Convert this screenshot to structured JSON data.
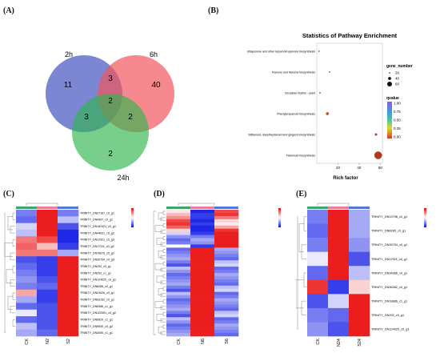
{
  "panels": {
    "A": {
      "label": "(A)",
      "sets": [
        {
          "name": "2h",
          "color": "#4f5fc4"
        },
        {
          "name": "6h",
          "color": "#f2575c"
        },
        {
          "name": "24h",
          "color": "#2fb64f"
        }
      ],
      "counts": {
        "only_2h": "11",
        "only_6h": "40",
        "only_24h": "2",
        "2h_6h": "3",
        "2h_24h": "3",
        "6h_24h": "2",
        "all": "2"
      }
    },
    "B": {
      "label": "(B)",
      "chart_data": {
        "type": "scatter",
        "title": "Statistics of Pathway Enrichment",
        "xlabel": "Rich factor",
        "xlim": [
          0,
          62
        ],
        "xticks": [
          "20",
          "40",
          "60"
        ],
        "categories": [
          "Ubiquinone and other terpenoid-quinone biosynthesis",
          "Flavone and flavonol biosynthesis",
          "Circadian rhythm - plant",
          "Phenylpropanoid biosynthesis",
          "Stilbenoid, diarylheptanoid and gingerol biosynthesis",
          "Flavonoid biosynthesis"
        ],
        "points": [
          {
            "rich_factor": 2,
            "gene_number": 1,
            "color": "#7b5fd0"
          },
          {
            "rich_factor": 12,
            "gene_number": 1,
            "color": "#7b5fd0"
          },
          {
            "rich_factor": 3,
            "gene_number": 1,
            "color": "#7b5fd0"
          },
          {
            "rich_factor": 10,
            "gene_number": 8,
            "color": "#d4502a"
          },
          {
            "rich_factor": 56,
            "gene_number": 5,
            "color": "#d92c2c"
          },
          {
            "rich_factor": 58,
            "gene_number": 60,
            "color": "#b8361e"
          }
        ],
        "size_legend": {
          "title": "gene_number",
          "values": [
            "20",
            "40",
            "60"
          ]
        },
        "color_legend": {
          "title": "qvalue",
          "ticks": [
            "1.00",
            "0.75",
            "0.50",
            "0.25",
            "0.00"
          ]
        }
      }
    },
    "C": {
      "label": "(C)",
      "columns": [
        "CK",
        "N2",
        "S2"
      ],
      "genes": [
        "TRINITY_DN27167_c0_g1",
        "TRINITY_DN4997_c0_g1",
        "TRINITY_DN162421_c0_g1",
        "TRINITY_DN44631_c0_g2",
        "TRINITY_DN12921_c0_g3",
        "TRINITY_DN17311_c0_g2",
        "TRINITY_DN76676_c0_g1",
        "TRINITY_DN30754_c0_g3",
        "TRINITY_DN252_c0_g1",
        "TRINITY_DN252_c1_g1",
        "TRINITY_DN124025_c0_g1",
        "TRINITY_DN8285_c0_g1",
        "TRINITY_DN24026_c0_g1",
        "TRINITY_DN53152_c0_g1",
        "TRINITY_DN5386_c1_g1",
        "TRINITY_DN122551_c0_g2",
        "TRINITY_DN5929_c1_g1",
        "TRINITY_DN9530_c0_g2",
        "TRINITY_DN4055_c1_g1"
      ],
      "values": [
        [
          -0.6,
          1.0,
          -0.6
        ],
        [
          -0.7,
          1.0,
          -0.3
        ],
        [
          -0.2,
          1.0,
          -0.8
        ],
        [
          -0.3,
          1.0,
          -1.0
        ],
        [
          0.6,
          0.8,
          -1.0
        ],
        [
          0.7,
          0.3,
          -0.9
        ],
        [
          0.6,
          0.6,
          -0.4
        ],
        [
          -0.8,
          -0.9,
          1.0
        ],
        [
          -0.7,
          -0.9,
          1.0
        ],
        [
          -0.6,
          -0.9,
          1.0
        ],
        [
          -0.5,
          -0.8,
          1.0
        ],
        [
          -0.6,
          -0.7,
          1.0
        ],
        [
          0.4,
          -0.9,
          1.0
        ],
        [
          -0.4,
          -0.9,
          1.0
        ],
        [
          -0.7,
          -0.8,
          1.0
        ],
        [
          -0.1,
          -0.8,
          1.0
        ],
        [
          -0.7,
          -0.8,
          1.0
        ],
        [
          -0.3,
          -0.8,
          1.0
        ],
        [
          -0.4,
          -0.7,
          1.0
        ]
      ]
    },
    "D": {
      "label": "(D)",
      "columns": [
        "CK",
        "N6",
        "S6"
      ],
      "rows": 40,
      "values": [
        [
          0.1,
          -1.0,
          0.8
        ],
        [
          0.3,
          -0.9,
          0.9
        ],
        [
          0.5,
          -0.9,
          0.6
        ],
        [
          0.8,
          -1.0,
          0.2
        ],
        [
          0.9,
          -0.9,
          0.1
        ],
        [
          0.7,
          -1.0,
          0.4
        ],
        [
          0.2,
          -1.0,
          0.9
        ],
        [
          -0.2,
          -0.9,
          1.0
        ],
        [
          -0.5,
          -0.6,
          1.0
        ],
        [
          -0.7,
          -0.4,
          1.0
        ],
        [
          -0.6,
          -0.5,
          1.0
        ],
        [
          0.0,
          -0.9,
          1.0
        ]
      ],
      "lower_block": [
        [
          -0.7,
          1.0,
          -0.4
        ],
        [
          -0.6,
          1.0,
          -0.5
        ],
        [
          -0.5,
          1.0,
          -0.6
        ],
        [
          -0.4,
          1.0,
          -0.7
        ],
        [
          -0.6,
          1.0,
          -0.3
        ],
        [
          -0.8,
          1.0,
          -0.2
        ],
        [
          -0.3,
          1.0,
          -0.7
        ],
        [
          -0.5,
          1.0,
          -0.6
        ]
      ]
    },
    "E": {
      "label": "(E)",
      "columns": [
        "CK",
        "N24",
        "S24"
      ],
      "genes": [
        "TRINITY_DN13798_c0_g1",
        "TRINITY_DN8285_c0_g1",
        "TRINITY_DN30754_c0_g1",
        "TRINITY_DN12921_c0_g1",
        "TRINITY_DN34368_c0_g1",
        "TRINITY_DN36362_c0_g1",
        "TRINITY_DN18886_c1_g1",
        "TRINITY_DN252_c0_g1",
        "TRINITY_DN124025_c0_g1"
      ],
      "values": [
        [
          -0.6,
          1.0,
          -0.4
        ],
        [
          -0.7,
          1.0,
          -0.4
        ],
        [
          -0.6,
          1.0,
          -0.5
        ],
        [
          -0.1,
          1.0,
          -0.8
        ],
        [
          -0.7,
          1.0,
          -0.3
        ],
        [
          0.9,
          -0.9,
          0.2
        ],
        [
          -0.8,
          -0.2,
          1.0
        ],
        [
          -0.6,
          -0.7,
          1.0
        ],
        [
          -0.5,
          -0.8,
          1.0
        ]
      ]
    }
  }
}
